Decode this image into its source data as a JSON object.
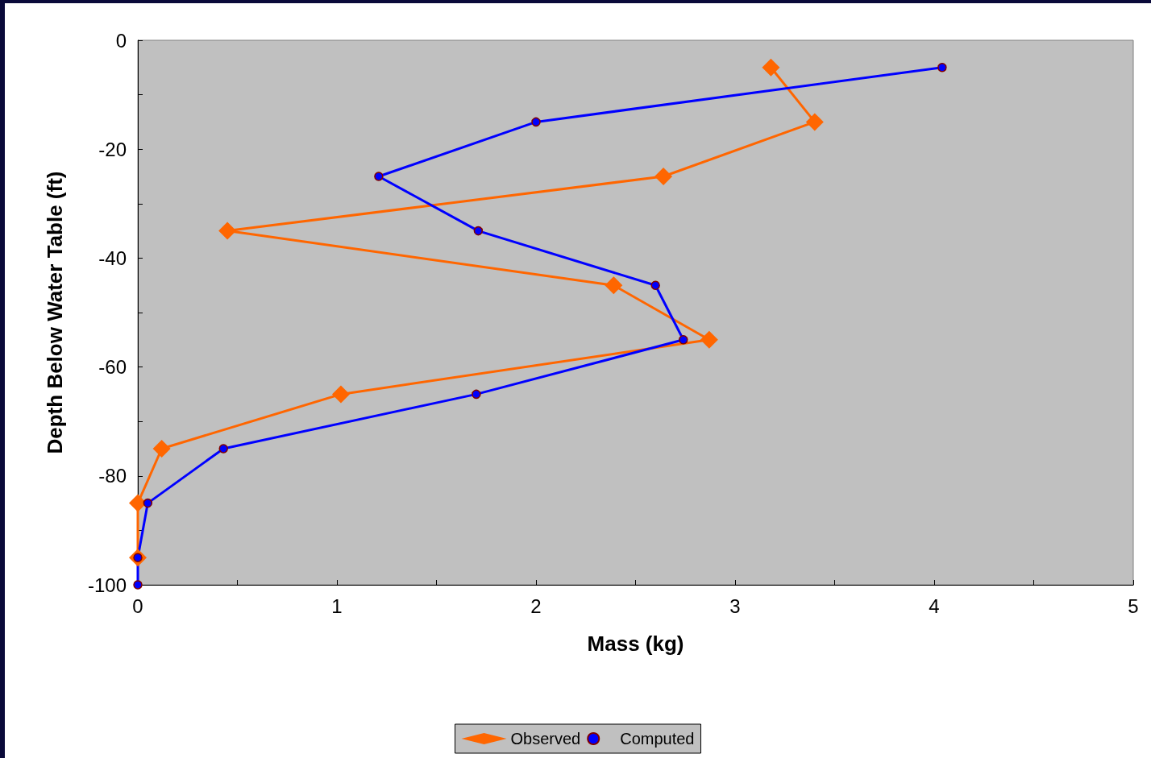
{
  "chart_data": {
    "type": "line",
    "xlabel": "Mass (kg)",
    "ylabel": "Depth Below Water Table (ft)",
    "xlim": [
      0,
      5
    ],
    "ylim": [
      -100,
      0
    ],
    "xticks": [
      0,
      {
        "value": 0.5,
        "label": null
      },
      1,
      {
        "value": 1.5,
        "label": null
      },
      2,
      {
        "value": 2.5,
        "label": null
      },
      3,
      {
        "value": 3.5,
        "label": null
      },
      4,
      {
        "value": 4.5,
        "label": null
      },
      5
    ],
    "yticks": [
      -100,
      {
        "value": -90,
        "label": null
      },
      -80,
      {
        "value": -70,
        "label": null
      },
      -60,
      {
        "value": -50,
        "label": null
      },
      -40,
      {
        "value": -30,
        "label": null
      },
      -20,
      {
        "value": -10,
        "label": null
      },
      0
    ],
    "grid": false,
    "legend": "bottom",
    "line_style": "solid",
    "series": [
      {
        "name": "Observed",
        "color": "#ff6600",
        "marker": "diamond",
        "x": [
          3.18,
          3.4,
          2.64,
          0.45,
          2.39,
          2.87,
          1.02,
          0.12,
          0,
          0
        ],
        "values": [
          -5,
          -15,
          -25,
          -35,
          -45,
          -55,
          -65,
          -75,
          -85,
          -95
        ]
      },
      {
        "name": "Computed",
        "color": "#0000ff",
        "marker": "circle",
        "x": [
          4.04,
          2.0,
          1.21,
          1.71,
          2.6,
          2.74,
          1.7,
          0.43,
          0.05,
          0,
          0
        ],
        "values": [
          -5,
          -15,
          -25,
          -35,
          -45,
          -55,
          -65,
          -75,
          -85,
          -95,
          -100
        ]
      }
    ]
  }
}
